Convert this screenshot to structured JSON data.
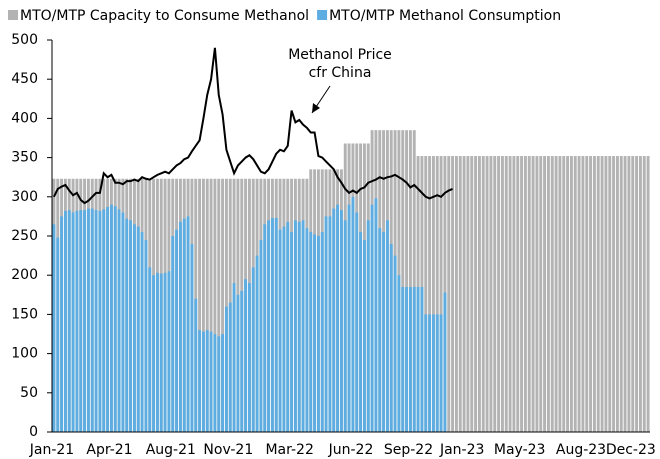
{
  "chart_data": {
    "type": "bar",
    "categories": [
      "Jan-21",
      null,
      null,
      null,
      null,
      null,
      null,
      null,
      null,
      null,
      null,
      null,
      null,
      null,
      null,
      "Apr-21",
      null,
      null,
      null,
      null,
      null,
      null,
      null,
      null,
      null,
      null,
      null,
      null,
      null,
      null,
      null,
      "Aug-21",
      null,
      null,
      null,
      null,
      null,
      null,
      null,
      null,
      null,
      null,
      null,
      null,
      null,
      null,
      "Nov-21",
      null,
      null,
      null,
      null,
      null,
      null,
      null,
      null,
      null,
      null,
      null,
      null,
      null,
      null,
      null,
      "Mar-22",
      null,
      null,
      null,
      null,
      null,
      null,
      null,
      null,
      null,
      null,
      null,
      null,
      null,
      null,
      null,
      "Jun-22",
      null,
      null,
      null,
      null,
      null,
      null,
      null,
      null,
      null,
      null,
      null,
      null,
      null,
      null,
      "Sep-22",
      null,
      null,
      null,
      null,
      null,
      null,
      null,
      null,
      null,
      null,
      null,
      null,
      null,
      "Jan-23",
      null,
      null,
      null,
      null,
      null,
      null,
      null,
      null,
      null,
      null,
      null,
      null,
      null,
      null,
      "May-23",
      null,
      null,
      null,
      null,
      null,
      null,
      null,
      null,
      null,
      null,
      null,
      null,
      null,
      null,
      null,
      "Aug-23",
      null,
      null,
      null,
      null,
      null,
      null,
      null,
      null,
      null,
      null,
      null,
      null,
      "Dec-23",
      null,
      null,
      null,
      null
    ],
    "series": [
      {
        "name": "MTO/MTP Capacity to Consume Methanol",
        "type": "bar",
        "color": "#b3b3b3",
        "values": [
          323,
          323,
          323,
          323,
          323,
          323,
          323,
          323,
          323,
          323,
          323,
          323,
          323,
          323,
          323,
          323,
          323,
          323,
          323,
          323,
          323,
          323,
          323,
          323,
          323,
          323,
          323,
          323,
          323,
          323,
          323,
          323,
          323,
          323,
          323,
          323,
          323,
          323,
          323,
          323,
          323,
          323,
          323,
          323,
          323,
          323,
          323,
          323,
          323,
          323,
          323,
          323,
          323,
          323,
          323,
          323,
          323,
          323,
          323,
          323,
          323,
          323,
          323,
          323,
          323,
          323,
          323,
          335,
          335,
          335,
          335,
          335,
          335,
          335,
          335,
          335,
          368,
          368,
          368,
          368,
          368,
          368,
          368,
          385,
          385,
          385,
          385,
          385,
          385,
          385,
          385,
          385,
          385,
          385,
          385,
          352,
          352,
          352,
          352,
          352,
          352,
          352,
          352,
          352,
          352,
          352,
          352,
          352,
          352,
          352,
          352,
          352,
          352,
          352,
          352,
          352,
          352,
          352,
          352,
          352,
          352,
          352,
          352,
          352,
          352,
          352,
          352,
          352,
          352,
          352,
          352,
          352,
          352,
          352,
          352,
          352,
          352,
          352,
          352,
          352,
          352,
          352,
          352,
          352,
          352,
          352,
          352,
          352,
          352,
          352,
          352,
          352,
          352,
          352,
          352,
          352
        ]
      },
      {
        "name": "MTO/MTP Methanol Consumption",
        "type": "bar",
        "color": "#5dade2",
        "values": [
          265,
          248,
          275,
          282,
          283,
          280,
          282,
          283,
          283,
          285,
          285,
          283,
          282,
          284,
          287,
          290,
          288,
          284,
          280,
          272,
          270,
          265,
          262,
          255,
          245,
          210,
          200,
          203,
          202,
          203,
          205,
          250,
          258,
          268,
          272,
          275,
          240,
          170,
          130,
          128,
          130,
          128,
          125,
          122,
          125,
          160,
          165,
          190,
          175,
          180,
          195,
          190,
          210,
          225,
          245,
          265,
          270,
          273,
          273,
          258,
          262,
          268,
          255,
          270,
          268,
          270,
          260,
          255,
          252,
          250,
          255,
          275,
          275,
          285,
          290,
          283,
          270,
          290,
          300,
          280,
          255,
          245,
          270,
          290,
          298,
          260,
          255,
          270,
          240,
          225,
          200,
          185,
          185,
          185,
          185,
          185,
          185,
          150,
          150,
          150,
          150,
          150,
          178,
          null,
          null,
          null,
          null,
          null,
          null,
          null,
          null,
          null,
          null,
          null,
          null,
          null,
          null,
          null,
          null,
          null,
          null,
          null,
          null,
          null,
          null,
          null,
          null,
          null,
          null,
          null,
          null,
          null,
          null,
          null,
          null,
          null,
          null,
          null,
          null,
          null,
          null,
          null,
          null,
          null,
          null,
          null,
          null,
          null,
          null,
          null,
          null,
          null,
          null,
          null,
          null,
          null
        ]
      },
      {
        "type": "line",
        "color": "#000000",
        "annotation": [
          "Methanol Price",
          "cfr China"
        ],
        "values": [
          300,
          310,
          313,
          315,
          308,
          302,
          305,
          296,
          292,
          295,
          300,
          305,
          305,
          330,
          325,
          328,
          318,
          318,
          316,
          320,
          320,
          322,
          320,
          325,
          323,
          322,
          325,
          328,
          330,
          332,
          330,
          335,
          340,
          343,
          348,
          350,
          358,
          365,
          372,
          400,
          430,
          450,
          490,
          430,
          405,
          360,
          345,
          330,
          340,
          345,
          350,
          353,
          348,
          340,
          332,
          330,
          335,
          345,
          355,
          360,
          358,
          365,
          410,
          395,
          398,
          392,
          388,
          382,
          382,
          352,
          350,
          345,
          340,
          335,
          325,
          318,
          310,
          305,
          308,
          305,
          310,
          312,
          318,
          320,
          322,
          325,
          323,
          325,
          326,
          328,
          325,
          322,
          318,
          312,
          315,
          310,
          305,
          300,
          298,
          300,
          302,
          300,
          305,
          308,
          310,
          null,
          null,
          null,
          null,
          null,
          null,
          null,
          null,
          null,
          null,
          null,
          null,
          null,
          null,
          null,
          null,
          null,
          null,
          null,
          null,
          null,
          null,
          null,
          null,
          null,
          null,
          null,
          null,
          null,
          null,
          null,
          null,
          null,
          null,
          null,
          null,
          null,
          null,
          null,
          null,
          null,
          null,
          null,
          null,
          null,
          null,
          null,
          null,
          null,
          null,
          null
        ]
      }
    ],
    "ylim": [
      0,
      500
    ],
    "yticks": [
      0,
      50,
      100,
      150,
      200,
      250,
      300,
      350,
      400,
      450,
      500
    ],
    "grid": false
  }
}
